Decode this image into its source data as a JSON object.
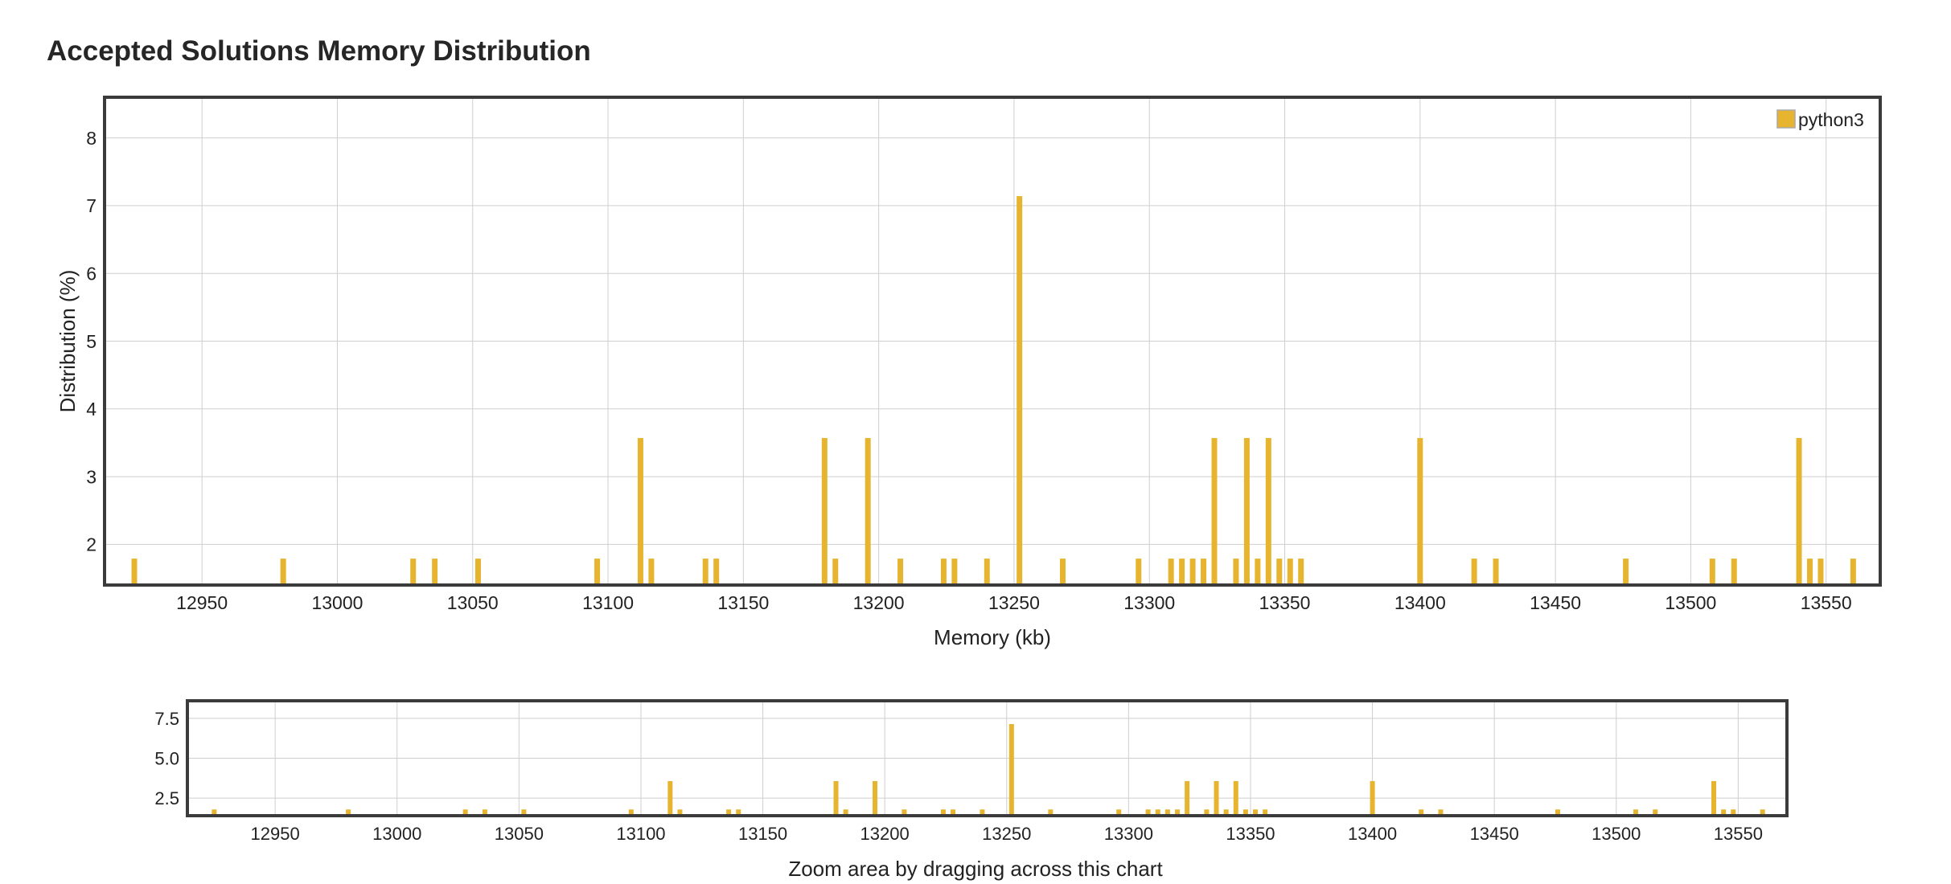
{
  "title": "Accepted Solutions Memory Distribution",
  "colors": {
    "bar": "#e6b42f",
    "grid": "#cfcfcf",
    "frame": "#3b3b3b",
    "text": "#222222"
  },
  "chart_data": [
    {
      "id": "main",
      "type": "bar",
      "title": "Accepted Solutions Memory Distribution",
      "xlabel": "Memory (kb)",
      "ylabel": "Distribution (%)",
      "xlim": [
        12914,
        13570
      ],
      "ylim": [
        1.4,
        8.6
      ],
      "xticks": [
        12950,
        13000,
        13050,
        13100,
        13150,
        13200,
        13250,
        13300,
        13350,
        13400,
        13450,
        13500,
        13550
      ],
      "yticks": [
        2,
        3,
        4,
        5,
        6,
        7,
        8
      ],
      "grid": true,
      "legend": {
        "position": "top-right",
        "entries": [
          "python3"
        ]
      },
      "series": [
        {
          "name": "python3",
          "x": [
            12925,
            12980,
            13028,
            13036,
            13052,
            13096,
            13112,
            13116,
            13136,
            13140,
            13180,
            13184,
            13196,
            13208,
            13224,
            13228,
            13240,
            13252,
            13268,
            13296,
            13308,
            13312,
            13316,
            13320,
            13324,
            13332,
            13336,
            13340,
            13344,
            13348,
            13352,
            13356,
            13400,
            13420,
            13428,
            13476,
            13508,
            13516,
            13540,
            13544,
            13548,
            13560
          ],
          "values": [
            1.79,
            1.79,
            1.79,
            1.79,
            1.79,
            1.79,
            3.57,
            1.79,
            1.79,
            1.79,
            3.57,
            1.79,
            3.57,
            1.79,
            1.79,
            1.79,
            1.79,
            7.14,
            1.79,
            1.79,
            1.79,
            1.79,
            1.79,
            1.79,
            3.57,
            1.79,
            3.57,
            1.79,
            3.57,
            1.79,
            1.79,
            1.79,
            3.57,
            1.79,
            1.79,
            1.79,
            1.79,
            1.79,
            3.57,
            1.79,
            1.79,
            1.79
          ]
        }
      ]
    },
    {
      "id": "navigator",
      "type": "bar",
      "xlabel": "Zoom area by dragging across this chart",
      "xlim": [
        12914,
        13570
      ],
      "ylim": [
        1.4,
        8.6
      ],
      "xticks": [
        12950,
        13000,
        13050,
        13100,
        13150,
        13200,
        13250,
        13300,
        13350,
        13400,
        13450,
        13500,
        13550
      ],
      "yticks": [
        2.5,
        5.0,
        7.5
      ],
      "ytick_labels": [
        "2.5",
        "5.0",
        "7.5"
      ],
      "grid": true,
      "series_ref": "python3"
    }
  ]
}
